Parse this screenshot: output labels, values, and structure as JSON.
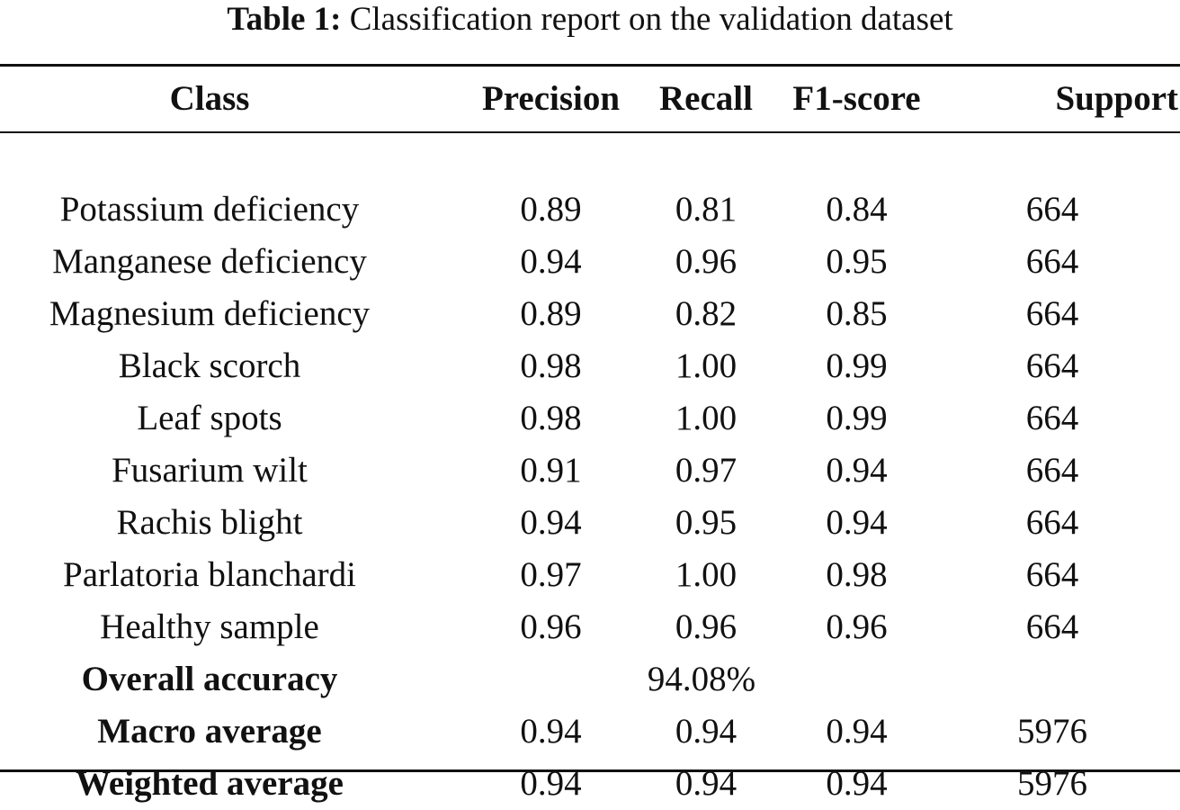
{
  "caption": {
    "label": "Table 1:",
    "text": "Classification report on the validation dataset"
  },
  "headers": [
    "Class",
    "Precision",
    "Recall",
    "F1-score",
    "Support"
  ],
  "rows": [
    {
      "cls": "Potassium deficiency",
      "precision": "0.89",
      "recall": "0.81",
      "f1": "0.84",
      "support": "664"
    },
    {
      "cls": "Manganese deficiency",
      "precision": "0.94",
      "recall": "0.96",
      "f1": "0.95",
      "support": "664"
    },
    {
      "cls": "Magnesium deficiency",
      "precision": "0.89",
      "recall": "0.82",
      "f1": "0.85",
      "support": "664"
    },
    {
      "cls": "Black scorch",
      "precision": "0.98",
      "recall": "1.00",
      "f1": "0.99",
      "support": "664"
    },
    {
      "cls": "Leaf spots",
      "precision": "0.98",
      "recall": "1.00",
      "f1": "0.99",
      "support": "664"
    },
    {
      "cls": "Fusarium wilt",
      "precision": "0.91",
      "recall": "0.97",
      "f1": "0.94",
      "support": "664"
    },
    {
      "cls": "Rachis blight",
      "precision": "0.94",
      "recall": "0.95",
      "f1": "0.94",
      "support": "664"
    },
    {
      "cls": "Parlatoria blanchardi",
      "precision": "0.97",
      "recall": "1.00",
      "f1": "0.98",
      "support": "664"
    },
    {
      "cls": "Healthy sample",
      "precision": "0.96",
      "recall": "0.96",
      "f1": "0.96",
      "support": "664"
    }
  ],
  "overall_accuracy": {
    "label": "Overall accuracy",
    "value": "94.08%"
  },
  "macro_average": {
    "label": "Macro average",
    "precision": "0.94",
    "recall": "0.94",
    "f1": "0.94",
    "support": "5976"
  },
  "weighted_average": {
    "label": "Weighted average",
    "precision": "0.94",
    "recall": "0.94",
    "f1": "0.94",
    "support": "5976"
  }
}
